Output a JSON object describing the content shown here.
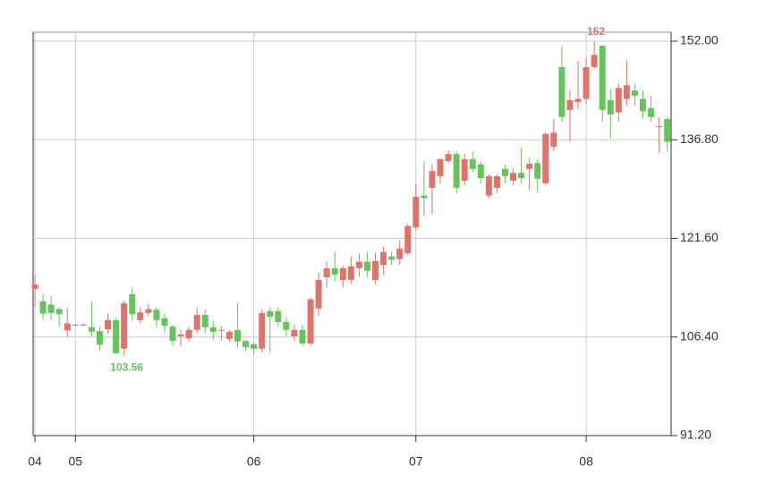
{
  "chart_data": {
    "type": "candlestick",
    "categories": [
      "04",
      null,
      null,
      null,
      null,
      "05",
      null,
      null,
      null,
      null,
      null,
      null,
      null,
      null,
      null,
      null,
      null,
      null,
      null,
      null,
      null,
      null,
      null,
      null,
      null,
      null,
      null,
      "06",
      null,
      null,
      null,
      null,
      null,
      null,
      null,
      null,
      null,
      null,
      null,
      null,
      null,
      null,
      null,
      null,
      null,
      null,
      null,
      "07",
      null,
      null,
      null,
      null,
      null,
      null,
      null,
      null,
      null,
      null,
      null,
      null,
      null,
      null,
      null,
      null,
      null,
      null,
      null,
      null,
      "08",
      null,
      null,
      null,
      null,
      null,
      null,
      null,
      null,
      null,
      null
    ],
    "open": [
      113.8,
      111.9,
      111.4,
      110.7,
      107.4,
      108.3,
      108.3,
      107.9,
      107.3,
      107.6,
      109,
      104.6,
      113,
      109,
      110.1,
      110.6,
      109.3,
      108,
      106.5,
      106.2,
      107.5,
      109.8,
      107.9,
      107.5,
      106.1,
      107.5,
      105.8,
      105.3,
      104.6,
      110.4,
      110.4,
      108.7,
      106.5,
      107.5,
      105.4,
      110.8,
      115.6,
      117,
      115.2,
      115.2,
      117,
      118,
      115.2,
      117.5,
      118.8,
      118.4,
      119.3,
      123.3,
      128.2,
      129.4,
      131.2,
      133.5,
      134.6,
      130.5,
      133.8,
      133,
      128.2,
      129.4,
      132.3,
      130.5,
      131.7,
      132.3,
      133.2,
      130.1,
      135.7,
      148,
      141.4,
      142.6,
      143.1,
      148,
      151.3,
      142.9,
      141,
      143.1,
      144.4,
      143.1,
      141.7,
      138.9,
      140
    ],
    "high": [
      116,
      113,
      112.7,
      111,
      111,
      108.5,
      108.5,
      111.8,
      108,
      110,
      109.4,
      112,
      114,
      111,
      111.5,
      111,
      110,
      108.3,
      107.5,
      108,
      111,
      110.7,
      109,
      108.1,
      107.5,
      111.6,
      106,
      105.6,
      110.7,
      111,
      111,
      109.5,
      108.3,
      108.3,
      112.5,
      116.3,
      118,
      119.5,
      117.4,
      118.8,
      119.3,
      119.4,
      119.4,
      120.3,
      119.5,
      121.3,
      123.9,
      130,
      133.5,
      133,
      134,
      135.2,
      135,
      134.6,
      135,
      133.4,
      131.5,
      131.5,
      133,
      132.5,
      135.5,
      134,
      133.8,
      138,
      140,
      151.2,
      144.5,
      149,
      149.4,
      152,
      151.3,
      144.6,
      145.5,
      149,
      145.5,
      144.4,
      143.6,
      140.3,
      140.3
    ],
    "low": [
      111,
      109,
      109,
      108,
      106.4,
      108.2,
      108.2,
      106.5,
      104.3,
      106.9,
      103.8,
      103.56,
      108.9,
      108.5,
      109.6,
      108,
      107,
      105,
      105,
      105.6,
      107,
      107,
      106,
      105.8,
      105.7,
      104.8,
      104.2,
      103.8,
      104,
      104,
      108,
      106.5,
      105.7,
      105,
      105,
      109.6,
      114,
      115,
      114,
      114.6,
      115.7,
      115.7,
      114.6,
      116,
      117.5,
      117.5,
      119,
      122.8,
      125,
      125.4,
      130,
      133.2,
      128.5,
      129.8,
      131.8,
      130,
      127.8,
      128.6,
      130,
      129.8,
      130,
      129,
      128.6,
      129.8,
      135,
      139.6,
      136.6,
      141.5,
      142.3,
      147.8,
      139.6,
      137,
      139.6,
      142,
      142,
      140.1,
      139.6,
      134.8,
      135
    ],
    "close": [
      114.5,
      110,
      110.1,
      109.9,
      108.5,
      108.3,
      108.3,
      107.2,
      105.2,
      109,
      103.9,
      111.6,
      109.9,
      110.2,
      110.7,
      109,
      108.1,
      105.8,
      106.8,
      107.5,
      109.8,
      107.9,
      107.2,
      107.5,
      107.2,
      105.7,
      104.8,
      104.6,
      110.1,
      109.5,
      108.7,
      107.5,
      107.5,
      105.4,
      112.2,
      115.2,
      117,
      116,
      117,
      117.3,
      118,
      116.6,
      118.1,
      119.5,
      118.3,
      120,
      123.5,
      128,
      127.8,
      132,
      133.8,
      134.6,
      129.4,
      133.8,
      132.3,
      130.9,
      131.2,
      131.2,
      131.2,
      131.7,
      130.9,
      133.1,
      130.8,
      137.7,
      137.9,
      140.3,
      142.9,
      143.1,
      148,
      149.9,
      141.4,
      140.7,
      144.8,
      145.2,
      143.6,
      141.2,
      140.3,
      138.9,
      136.5
    ],
    "up_color": "#e0736a",
    "down_color": "#66c45c",
    "annotations": [
      {
        "value": 152,
        "color": "#e0736a"
      },
      {
        "value": 103.56,
        "color": "#66c45c"
      }
    ],
    "ylim": [
      91.2,
      153.38
    ],
    "yticks": [
      {
        "value": 91.2,
        "label": "91.20"
      },
      {
        "value": 106.4,
        "label": "106.40"
      },
      {
        "value": 121.6,
        "label": "121.60"
      },
      {
        "value": 136.8,
        "label": "136.80"
      },
      {
        "value": 152,
        "label": "152.00"
      }
    ],
    "grid": true
  }
}
